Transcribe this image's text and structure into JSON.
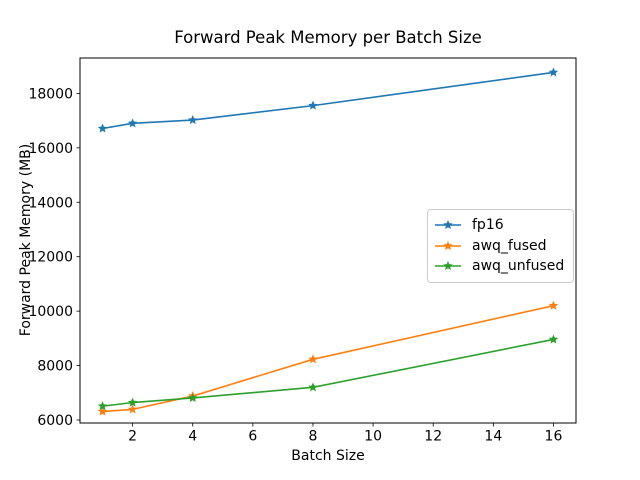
{
  "chart_data": {
    "type": "line",
    "title": "Forward Peak Memory per Batch Size",
    "xlabel": "Batch Size",
    "ylabel": "Forward Peak Memory (MB)",
    "x": [
      1,
      2,
      4,
      8,
      16
    ],
    "series": [
      {
        "name": "fp16",
        "color": "#1f77b4",
        "values": [
          16710,
          16900,
          17020,
          17550,
          18770
        ]
      },
      {
        "name": "awq_fused",
        "color": "#ff7f0e",
        "values": [
          6310,
          6390,
          6880,
          8230,
          10200
        ]
      },
      {
        "name": "awq_unfused",
        "color": "#2ca02c",
        "values": [
          6510,
          6640,
          6810,
          7200,
          8960
        ]
      }
    ],
    "x_ticks": [
      2,
      4,
      6,
      8,
      10,
      12,
      14,
      16
    ],
    "y_ticks": [
      6000,
      8000,
      10000,
      12000,
      14000,
      16000,
      18000
    ],
    "xlim": [
      0.25,
      16.75
    ],
    "ylim": [
      5890,
      19300
    ],
    "grid": false,
    "legend_position": "center right",
    "marker": "star",
    "line_width": 1.6,
    "background": "#ffffff",
    "axis_color": "#000000"
  }
}
